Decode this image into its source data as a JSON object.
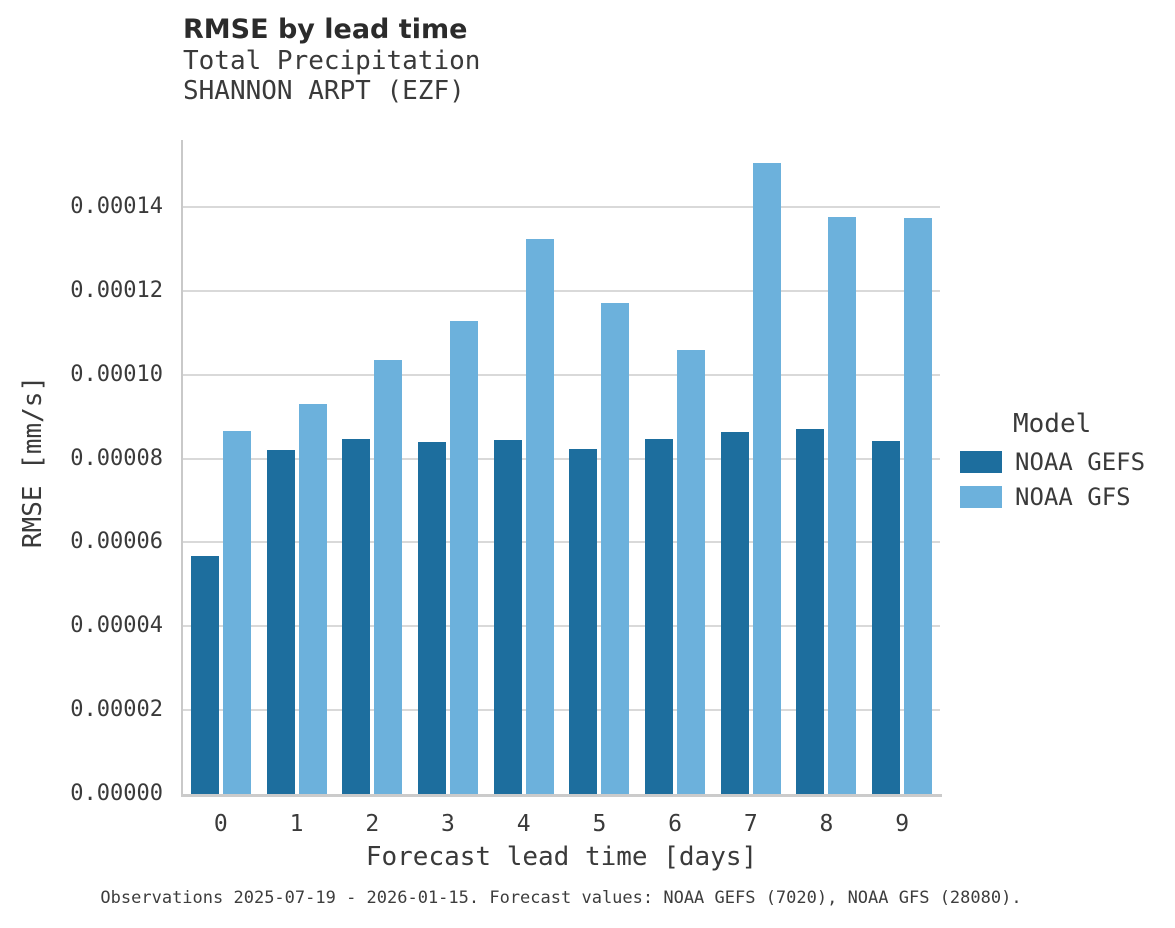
{
  "header": {
    "title": "RMSE by lead time",
    "subtitle1": "Total Precipitation",
    "subtitle2": "SHANNON ARPT (EZF)"
  },
  "chart_data": {
    "type": "bar",
    "title": "RMSE by lead time",
    "subtitle": [
      "Total Precipitation",
      "SHANNON ARPT (EZF)"
    ],
    "categories": [
      "0",
      "1",
      "2",
      "3",
      "4",
      "5",
      "6",
      "7",
      "8",
      "9"
    ],
    "series": [
      {
        "name": "NOAA GEFS",
        "color": "#1d6e9e",
        "values": [
          5.68e-05,
          8.2e-05,
          8.48e-05,
          8.4e-05,
          8.45e-05,
          8.23e-05,
          8.48e-05,
          8.64e-05,
          8.71e-05,
          8.43e-05
        ]
      },
      {
        "name": "NOAA GFS",
        "color": "#6cb1dc",
        "values": [
          8.66e-05,
          9.3e-05,
          0.0001036,
          0.0001128,
          0.0001323,
          0.0001172,
          0.0001058,
          0.0001504,
          0.0001377,
          0.0001375
        ]
      }
    ],
    "xlabel": "Forecast lead time [days]",
    "ylabel": "RMSE [mm/s]",
    "ylim": [
      0,
      0.000156
    ],
    "yticks": [
      0,
      2e-05,
      4e-05,
      6e-05,
      8e-05,
      0.0001,
      0.00012,
      0.00014
    ],
    "ytick_labels": [
      "0.00000",
      "0.00002",
      "0.00004",
      "0.00006",
      "0.00008",
      "0.00010",
      "0.00012",
      "0.00014"
    ],
    "grid": "horizontal",
    "legend_title": "Model",
    "legend_position": "right"
  },
  "footer": {
    "caption": "Observations 2025-07-19 - 2026-01-15. Forecast values: NOAA GEFS (7020), NOAA GFS (28080)."
  }
}
